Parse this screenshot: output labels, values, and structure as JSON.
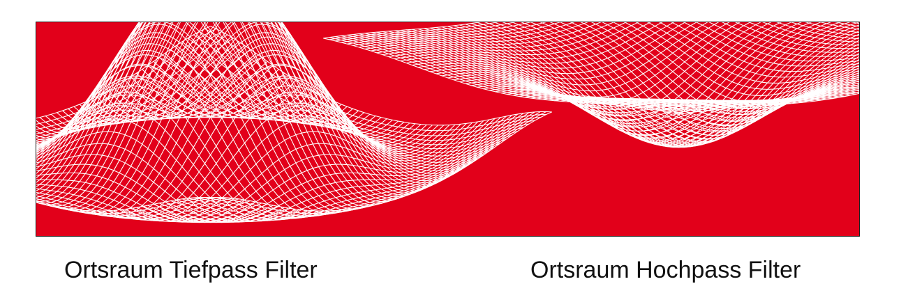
{
  "colors": {
    "panel_background": "#e2001a",
    "mesh": "#ffffff",
    "border": "#1a1a1a",
    "caption_text": "#111111"
  },
  "surfaces": [
    {
      "id": "lowpass",
      "shape": "sinc-peak",
      "mesh": "wireframe"
    },
    {
      "id": "highpass",
      "shape": "saddle-dip",
      "mesh": "wireframe"
    }
  ],
  "captions": {
    "left": "Ortsraum Tiefpass Filter",
    "right": "Ortsraum Hochpass Filter"
  }
}
